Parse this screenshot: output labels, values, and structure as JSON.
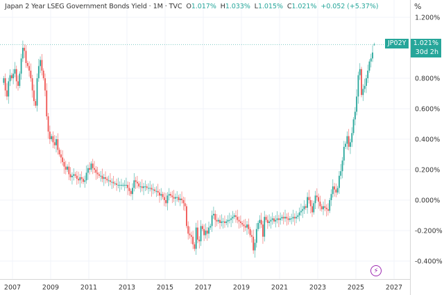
{
  "legend": {
    "title": "Japan 2 Year LSEG Government Bonds Yield",
    "interval": "1M",
    "source": "TVC",
    "open": "1.017%",
    "high": "1.033%",
    "low": "1.015%",
    "close": "1.021%",
    "change": "+0.052 (+5.37%)"
  },
  "price_label": {
    "symbol": "JP02Y",
    "price": "1.021%",
    "countdown": "30d 2h"
  },
  "unit": "%",
  "colors": {
    "up": "#26a69a",
    "down": "#ef5350",
    "accent": "#26a69a",
    "bolt": "#9c27b0"
  },
  "icons": {
    "alert": "lightning-icon"
  },
  "chart_data": {
    "type": "candlestick",
    "title": "Japan 2 Year LSEG Government Bonds Yield",
    "interval": "monthly",
    "start": "2006-07",
    "ylim": [
      -0.45,
      1.25
    ],
    "y_ticks": [
      1.2,
      0.8,
      0.6,
      0.4,
      0.2,
      0.0,
      -0.2,
      -0.4
    ],
    "y_tick_labels": [
      "1.200%",
      "0.800%",
      "0.600%",
      "0.400%",
      "0.200%",
      "0.000%",
      "-0.200%",
      "-0.400%"
    ],
    "x_ticks": [
      "2007",
      "2009",
      "2011",
      "2013",
      "2015",
      "2017",
      "2019",
      "2021",
      "2023",
      "2025",
      "2027"
    ],
    "grid": true,
    "last": {
      "open": 1.017,
      "high": 1.033,
      "low": 1.015,
      "close": 1.021
    },
    "closes": [
      0.8,
      0.72,
      0.68,
      0.78,
      0.82,
      0.8,
      0.83,
      0.86,
      0.78,
      0.75,
      0.83,
      0.93,
      1.0,
      0.98,
      0.9,
      0.88,
      0.85,
      0.8,
      0.72,
      0.65,
      0.62,
      0.8,
      0.88,
      0.92,
      0.85,
      0.8,
      0.72,
      0.55,
      0.45,
      0.4,
      0.42,
      0.38,
      0.36,
      0.4,
      0.33,
      0.3,
      0.28,
      0.25,
      0.22,
      0.2,
      0.22,
      0.17,
      0.15,
      0.16,
      0.17,
      0.16,
      0.14,
      0.13,
      0.15,
      0.14,
      0.12,
      0.13,
      0.18,
      0.21,
      0.2,
      0.24,
      0.21,
      0.2,
      0.18,
      0.17,
      0.16,
      0.16,
      0.14,
      0.15,
      0.14,
      0.13,
      0.13,
      0.12,
      0.12,
      0.11,
      0.11,
      0.1,
      0.1,
      0.1,
      0.1,
      0.1,
      0.1,
      0.1,
      0.08,
      0.06,
      0.04,
      0.08,
      0.13,
      0.12,
      0.11,
      0.09,
      0.09,
      0.08,
      0.09,
      0.09,
      0.08,
      0.08,
      0.08,
      0.07,
      0.07,
      0.06,
      0.06,
      0.05,
      0.03,
      0.04,
      0.02,
      0.0,
      -0.02,
      0.03,
      0.04,
      0.03,
      0.02,
      0.01,
      0.02,
      0.02,
      0.0,
      0.01,
      0.0,
      -0.02,
      -0.04,
      -0.17,
      -0.22,
      -0.23,
      -0.24,
      -0.29,
      -0.32,
      -0.18,
      -0.26,
      -0.27,
      -0.17,
      -0.19,
      -0.23,
      -0.2,
      -0.22,
      -0.18,
      -0.17,
      -0.1,
      -0.09,
      -0.13,
      -0.14,
      -0.13,
      -0.15,
      -0.14,
      -0.14,
      -0.15,
      -0.14,
      -0.13,
      -0.13,
      -0.12,
      -0.11,
      -0.1,
      -0.11,
      -0.13,
      -0.14,
      -0.15,
      -0.16,
      -0.17,
      -0.18,
      -0.16,
      -0.19,
      -0.23,
      -0.24,
      -0.33,
      -0.28,
      -0.19,
      -0.15,
      -0.13,
      -0.16,
      -0.24,
      -0.11,
      -0.13,
      -0.15,
      -0.14,
      -0.13,
      -0.12,
      -0.14,
      -0.13,
      -0.12,
      -0.13,
      -0.12,
      -0.11,
      -0.12,
      -0.11,
      -0.12,
      -0.13,
      -0.12,
      -0.12,
      -0.11,
      -0.12,
      -0.11,
      -0.1,
      -0.08,
      -0.07,
      -0.06,
      -0.04,
      -0.05,
      0.02,
      0.0,
      -0.04,
      -0.08,
      -0.02,
      0.03,
      0.02,
      -0.01,
      -0.04,
      -0.06,
      -0.04,
      -0.05,
      -0.06,
      -0.07,
      0.0,
      0.04,
      0.09,
      0.07,
      0.05,
      0.08,
      0.16,
      0.19,
      0.26,
      0.35,
      0.37,
      0.42,
      0.35,
      0.38,
      0.44,
      0.53,
      0.58,
      0.68,
      0.82,
      0.86,
      0.69,
      0.73,
      0.75,
      0.8,
      0.85,
      0.91,
      0.93,
      0.969,
      1.021
    ]
  }
}
